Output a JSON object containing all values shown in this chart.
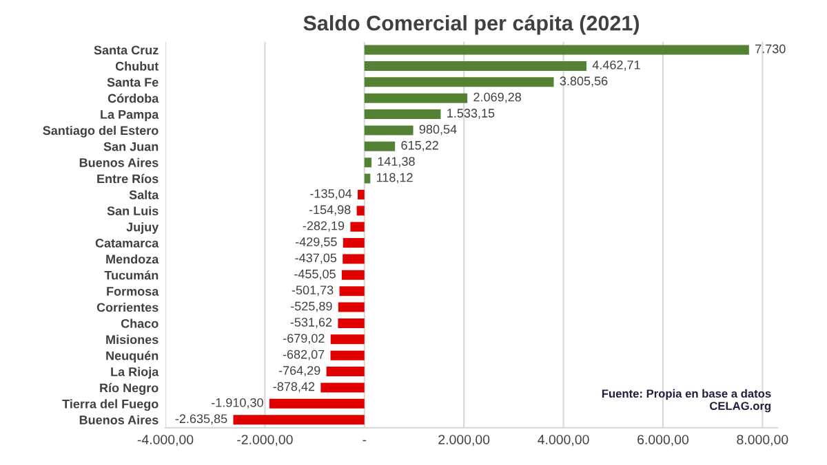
{
  "chart_data": {
    "type": "bar",
    "orientation": "horizontal",
    "title": "Saldo Comercial per cápita (2021)",
    "categories": [
      "Santa Cruz",
      "Chubut",
      "Santa Fe",
      "Córdoba",
      "La Pampa",
      "Santiago del Estero",
      "San Juan",
      "Buenos Aires",
      "Entre Ríos",
      "Salta",
      "San Luis",
      "Jujuy",
      "Catamarca",
      "Mendoza",
      "Tucumán",
      "Formosa",
      "Corrientes",
      "Chaco",
      "Misiones",
      "Neuquén",
      "La Rioja",
      "Río Negro",
      "Tierra del Fuego",
      "Buenos Aires"
    ],
    "values": [
      7730,
      4462.71,
      3805.56,
      2069.28,
      1533.15,
      980.54,
      615.22,
      141.38,
      118.12,
      -135.04,
      -154.98,
      -282.19,
      -429.55,
      -437.05,
      -455.05,
      -501.73,
      -525.89,
      -531.62,
      -679.02,
      -682.07,
      -764.29,
      -878.42,
      -1910.3,
      -2635.85
    ],
    "value_labels": [
      "7.730",
      "4.462,71",
      "3.805,56",
      "2.069,28",
      "1.533,15",
      "980,54",
      "615,22",
      "141,38",
      "118,12",
      "-135,04",
      "-154,98",
      "-282,19",
      "-429,55",
      "-437,05",
      "-455,05",
      "-501,73",
      "-525,89",
      "-531,62",
      "-679,02",
      "-682,07",
      "-764,29",
      "-878,42",
      "-1.910,30",
      "-2.635,85"
    ],
    "colors": [
      "#548235",
      "#548235",
      "#548235",
      "#548235",
      "#548235",
      "#548235",
      "#548235",
      "#548235",
      "#548235",
      "#e00000",
      "#e00000",
      "#e00000",
      "#e00000",
      "#e00000",
      "#e00000",
      "#e00000",
      "#e00000",
      "#e00000",
      "#e00000",
      "#e00000",
      "#e00000",
      "#e00000",
      "#e00000",
      "#e00000"
    ],
    "xlim": [
      -4000,
      8300
    ],
    "xticks": [
      {
        "value": -4000,
        "label": "-4.000,00"
      },
      {
        "value": -2000,
        "label": "-2.000,00"
      },
      {
        "value": 0,
        "label": "-"
      },
      {
        "value": 2000,
        "label": "2.000,00"
      },
      {
        "value": 4000,
        "label": "4.000,00"
      },
      {
        "value": 6000,
        "label": "6.000,00"
      },
      {
        "value": 8000,
        "label": "8.000,00"
      }
    ],
    "grid": "x",
    "annotations": [
      "Fuente: Propia en base a datos\nCELAG.org"
    ]
  }
}
